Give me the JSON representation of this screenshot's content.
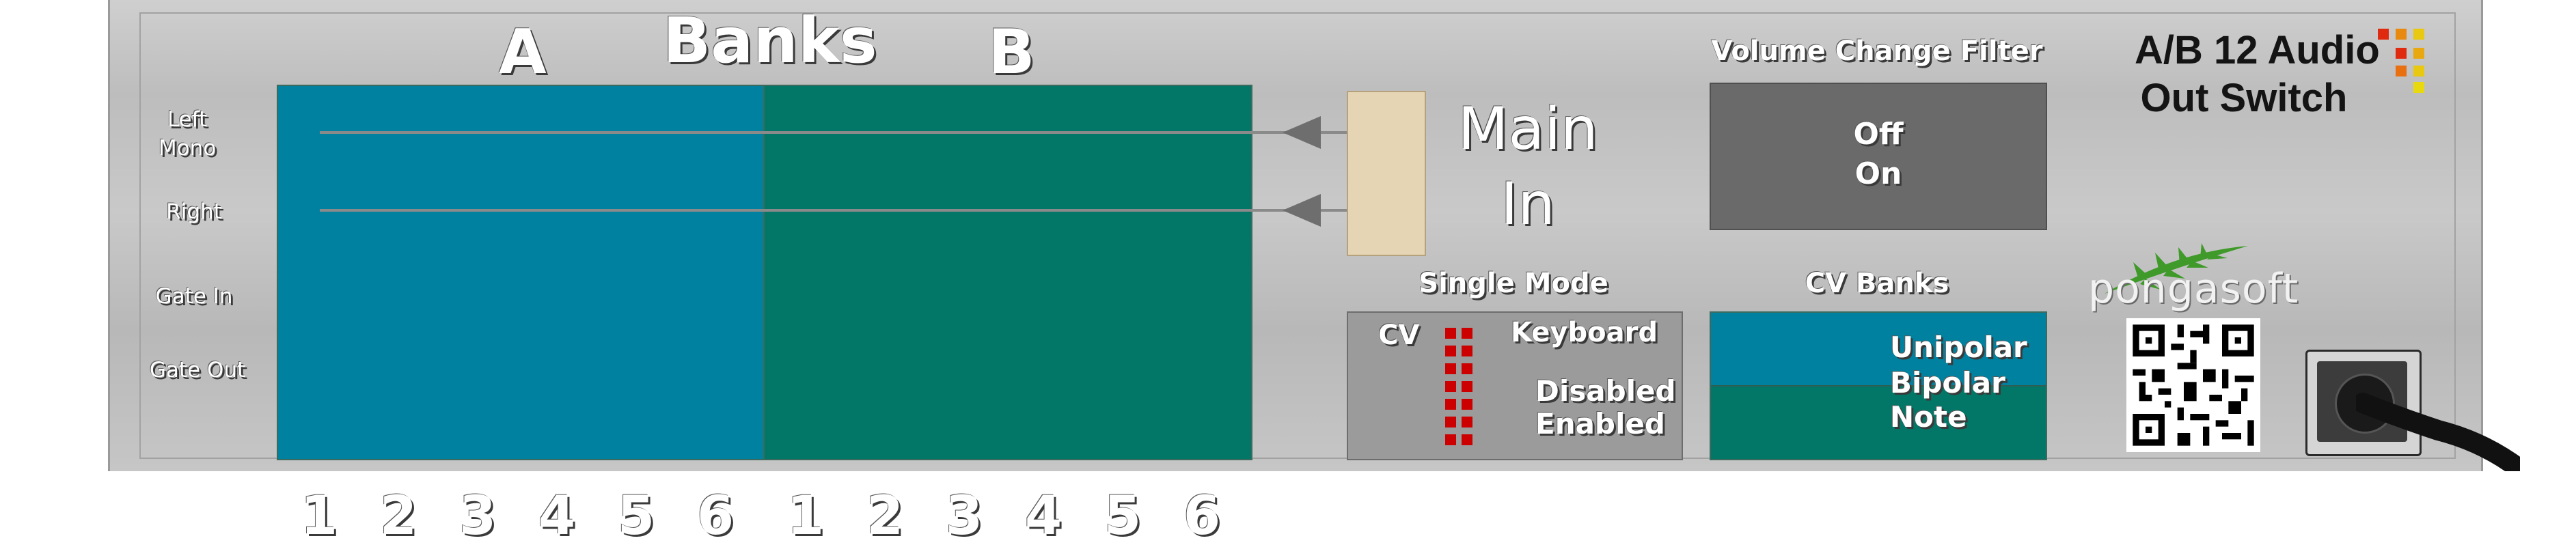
{
  "module": {
    "title_line1": "A/B 12 Audio",
    "title_line2": "Out Switch",
    "banks_label": "Banks",
    "bank_a_label": "A",
    "bank_b_label": "B",
    "bank_a_numbers": [
      "1",
      "2",
      "3",
      "4",
      "5",
      "6"
    ],
    "bank_b_numbers": [
      "1",
      "2",
      "3",
      "4",
      "5",
      "6"
    ],
    "bank_a_color": "#00819f",
    "bank_b_color": "#037767"
  },
  "side_labels": {
    "left_mono_1": "Left",
    "left_mono_2": "Mono",
    "right": "Right",
    "gate_in": "Gate In",
    "gate_out": "Gate Out"
  },
  "main_in": {
    "line1": "Main",
    "line2": "In"
  },
  "volume_filter": {
    "heading": "Volume Change Filter",
    "off": "Off",
    "on": "On"
  },
  "single_mode": {
    "heading": "Single Mode",
    "cv": "CV",
    "keyboard": "Keyboard",
    "disabled": "Disabled",
    "enabled": "Enabled",
    "led_color": "#cc0000"
  },
  "cv_banks": {
    "heading": "CV Banks",
    "unipolar": "Unipolar",
    "bipolar": "Bipolar",
    "note": "Note"
  },
  "brand": {
    "name": "pongasoft",
    "logo_icon": "fern-leaf-icon"
  }
}
